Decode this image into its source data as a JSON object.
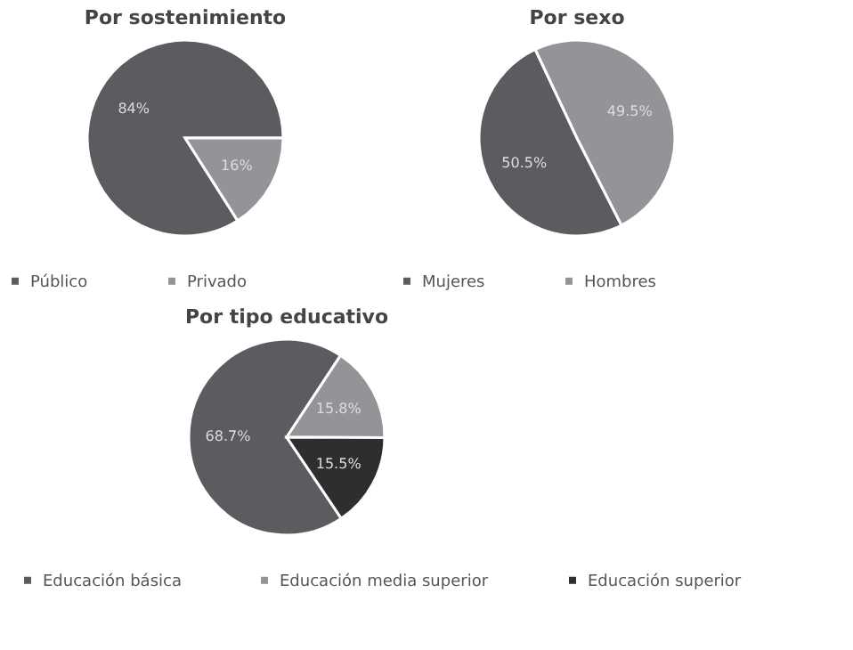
{
  "chart_data": [
    {
      "type": "pie",
      "title": "Por sostenimiento",
      "categories": [
        "Público",
        "Privado"
      ],
      "values": [
        84,
        16
      ],
      "colors": [
        "#5b5b60",
        "#949498"
      ],
      "value_labels": [
        "84%",
        "16%"
      ],
      "legend": "bottom"
    },
    {
      "type": "pie",
      "title": "Por sexo",
      "categories": [
        "Mujeres",
        "Hombres"
      ],
      "values": [
        50.5,
        49.5
      ],
      "colors": [
        "#5b5b60",
        "#949498"
      ],
      "value_labels": [
        "50.5%",
        "49.5%"
      ],
      "legend": "bottom"
    },
    {
      "type": "pie",
      "title": "Por tipo educativo",
      "categories": [
        "Educación básica",
        "Educación media superior",
        "Educación superior"
      ],
      "values": [
        68.7,
        15.8,
        15.5
      ],
      "colors": [
        "#5b5b60",
        "#949498",
        "#2e2e31"
      ],
      "value_labels": [
        "68.7%",
        "15.8%",
        "15.5%"
      ],
      "legend": "bottom"
    }
  ]
}
